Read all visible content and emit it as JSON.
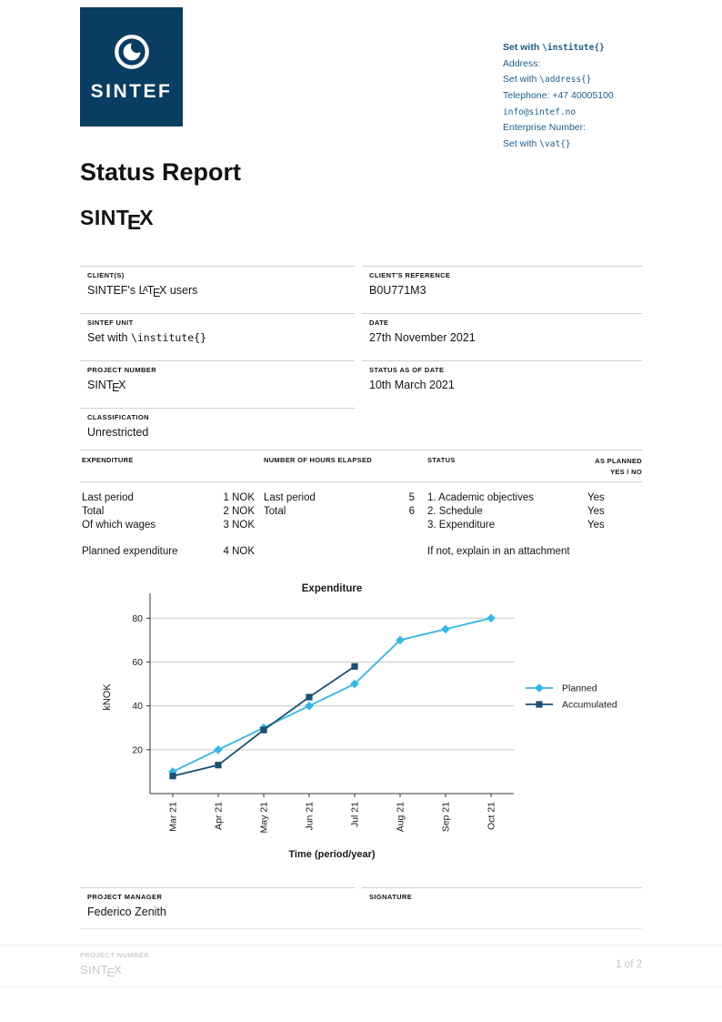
{
  "logo": {
    "text": "SINTEF"
  },
  "contact": {
    "lines": [
      {
        "pre": "Set with ",
        "mono": "\\institute{}"
      },
      {
        "pre": "Address:",
        "mono": ""
      },
      {
        "pre": "Set with ",
        "mono": "\\address{}"
      },
      {
        "pre": "Telephone: +47 40005100",
        "mono": ""
      },
      {
        "pre": "",
        "mono": "info@sintef.no"
      },
      {
        "pre": "Enterprise Number:",
        "mono": ""
      },
      {
        "pre": "Set with ",
        "mono": "\\vat{}"
      }
    ]
  },
  "title": "Status Report",
  "sintex": {
    "pre": "SINT",
    "e": "E",
    "x": "X"
  },
  "latex": {
    "l": "L",
    "a": "A",
    "t": "T",
    "e": "E",
    "x": "X"
  },
  "info": {
    "client_label": "CLIENT(S)",
    "client_pre": "SINTEF's ",
    "client_post": " users",
    "client_ref_label": "CLIENT'S REFERENCE",
    "client_ref": "B0U771M3",
    "unit_label": "SINTEF UNIT",
    "unit_pre": "Set with ",
    "unit_mono": "\\institute{}",
    "date_label": "DATE",
    "date": "27th November 2021",
    "project_label": "PROJECT NUMBER",
    "status_date_label": "STATUS AS OF DATE",
    "status_date": "10th March 2021",
    "classification_label": "CLASSIFICATION",
    "classification": "Unrestricted"
  },
  "table": {
    "headers": {
      "expenditure": "EXPENDITURE",
      "hours": "NUMBER OF HOURS ELAPSED",
      "status": "STATUS",
      "planned1": "AS PLANNED",
      "planned2": "YES / NO"
    },
    "expenditure_rows": [
      {
        "label": "Last period",
        "value": "1 NOK"
      },
      {
        "label": "Total",
        "value": "2 NOK"
      },
      {
        "label": "Of which wages",
        "value": "3 NOK"
      }
    ],
    "planned_expenditure": {
      "label": "Planned expenditure",
      "value": "4 NOK"
    },
    "hours_rows": [
      {
        "label": "Last period",
        "value": "5"
      },
      {
        "label": "Total",
        "value": "6"
      }
    ],
    "status_rows": [
      "1. Academic objectives",
      "2. Schedule",
      "3. Expenditure"
    ],
    "status_note": "If not, explain in an attachment",
    "yes_values": [
      "Yes",
      "Yes",
      "Yes"
    ]
  },
  "chart_data": {
    "type": "line",
    "title": "Expenditure",
    "xlabel": "Time (period/year)",
    "ylabel": "kNOK",
    "categories": [
      "Mar 21",
      "Apr 21",
      "May 21",
      "Jun 21",
      "Jul 21",
      "Aug 21",
      "Sep 21",
      "Oct 21"
    ],
    "series": [
      {
        "name": "Planned",
        "color": "#35b5e5",
        "marker": "diamond",
        "values": [
          10,
          20,
          30,
          40,
          50,
          70,
          75,
          80
        ]
      },
      {
        "name": "Accumulated",
        "color": "#1d4f71",
        "marker": "square",
        "values": [
          8,
          13,
          29,
          44,
          58
        ]
      }
    ],
    "ylim": [
      0,
      88
    ],
    "yticks": [
      20,
      40,
      60,
      80
    ],
    "grid": true,
    "legend_position": "right"
  },
  "manager": {
    "label": "PROJECT MANAGER",
    "name": "Federico Zenith",
    "signature_label": "SIGNATURE"
  },
  "footer": {
    "label": "PROJECT NUMBER",
    "page": "1 of 2"
  },
  "colors": {
    "navy": "#093d61",
    "link_blue": "#1d5c8a",
    "planned": "#35b5e5",
    "accumulated": "#1d4f71"
  }
}
